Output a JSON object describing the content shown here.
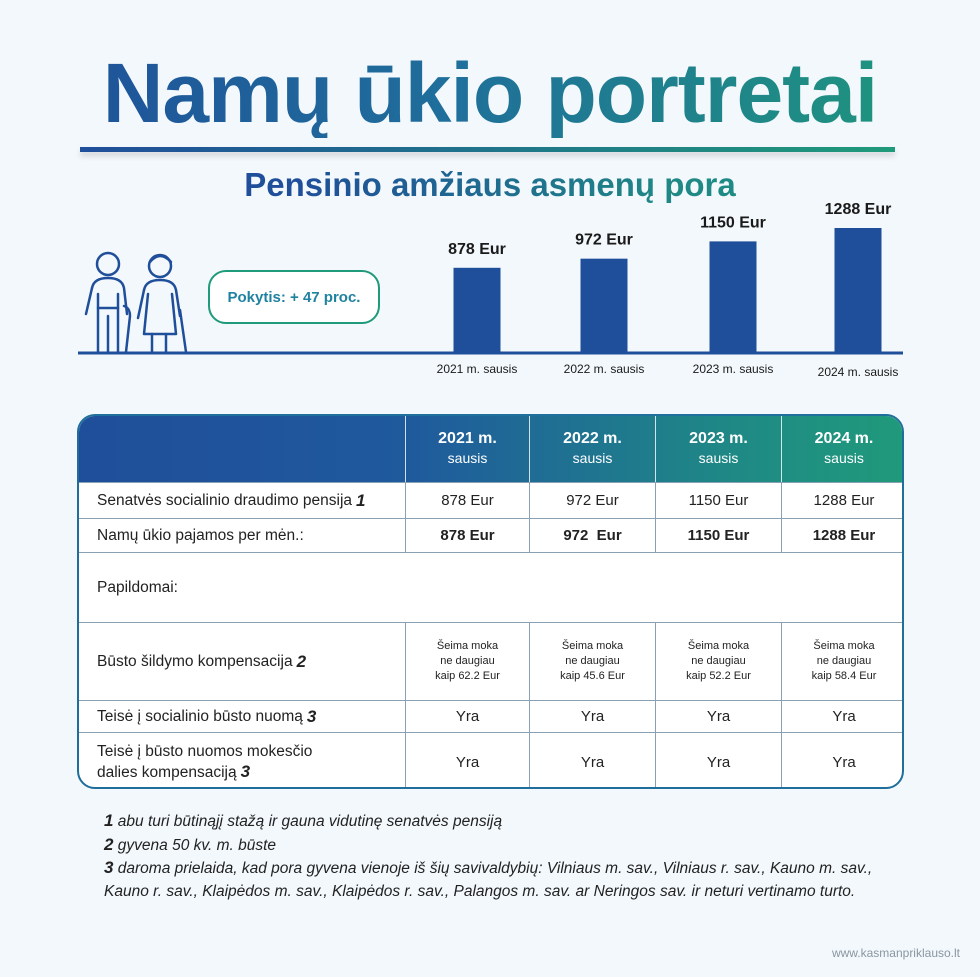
{
  "title": "Namų ūkio portretai",
  "subtitle": "Pensinio amžiaus asmenų pora",
  "change_label": "Pokytis: + 47 proc.",
  "chart_data": {
    "type": "bar",
    "categories": [
      "2021 m. sausis",
      "2022 m. sausis",
      "2023 m. sausis",
      "2024 m. sausis"
    ],
    "values": [
      878,
      972,
      1150,
      1288
    ],
    "data_labels": [
      "878 Eur",
      "972 Eur",
      "1150 Eur",
      "1288 Eur"
    ],
    "bar_color": "#1f4e9a",
    "grid": false,
    "legend": "none",
    "ylim": [
      0,
      1288
    ]
  },
  "table": {
    "columns": [
      {
        "year": "2021 m.",
        "month": "sausis"
      },
      {
        "year": "2022 m.",
        "month": "sausis"
      },
      {
        "year": "2023 m.",
        "month": "sausis"
      },
      {
        "year": "2024 m.",
        "month": "sausis"
      }
    ],
    "rows": [
      {
        "label": "Senatvės socialinio draudimo pensija",
        "note": "1",
        "cells": [
          "878 Eur",
          "972 Eur",
          "1150 Eur",
          "1288 Eur"
        ]
      },
      {
        "label": "Namų ūkio pajamos per mėn.:",
        "note": "",
        "cells": [
          "878 Eur",
          "972  Eur",
          "1150 Eur",
          "1288 Eur"
        ]
      },
      {
        "label": "Papildomai:"
      },
      {
        "label": "Būsto šildymo kompensacija",
        "note": "2",
        "cells": [
          "Šeima moka ne daugiau kaip 62.2 Eur",
          "Šeima moka ne daugiau kaip 45.6 Eur",
          "Šeima moka ne daugiau kaip 52.2 Eur",
          "Šeima moka ne daugiau kaip 58.4 Eur"
        ]
      },
      {
        "label": "Teisė į socialinio būsto nuomą",
        "note": "3",
        "cells": [
          "Yra",
          "Yra",
          "Yra",
          "Yra"
        ]
      },
      {
        "label_line1": "Teisė į būsto nuomos mokesčio",
        "label_line2": "dalies kompensaciją",
        "note": "3",
        "cells": [
          "Yra",
          "Yra",
          "Yra",
          "Yra"
        ]
      }
    ]
  },
  "notes": [
    {
      "num": "1",
      "text": "abu turi būtinąjį stažą ir gauna vidutinę senatvės pensiją"
    },
    {
      "num": "2",
      "text": "gyvena 50 kv. m. būste"
    },
    {
      "num": "3",
      "text": "daroma prielaida, kad pora gyvena vienoje iš šių savivaldybių: Vilniaus m. sav., Vilniaus r. sav., Kauno m. sav.,"
    },
    {
      "num": "",
      "text": "Kauno r. sav., Klaipėdos m. sav., Klaipėdos r. sav., Palangos m. sav. ar Neringos sav. ir neturi vertinamo turto."
    }
  ],
  "website": "www.kasmanpriklauso.lt",
  "colors": {
    "blue": "#1f4e9a",
    "teal": "#1f9a7a"
  },
  "icons": [
    "elderly-couple-icon"
  ]
}
